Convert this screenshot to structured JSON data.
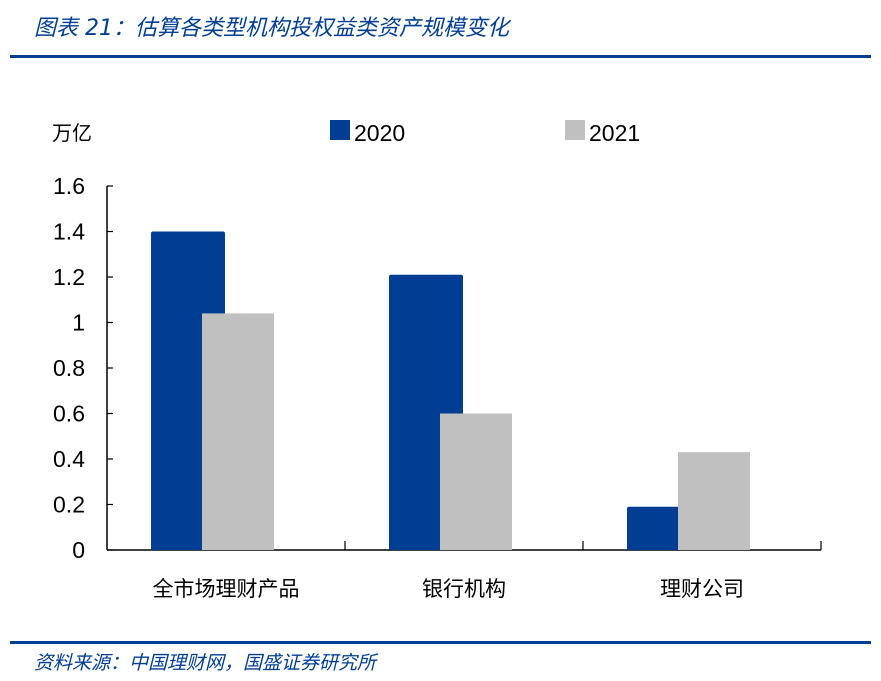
{
  "header": {
    "title": "图表 21：估算各类型机构投权益类资产规模变化"
  },
  "footer": {
    "source": "资料来源：中国理财网，国盛证券研究所"
  },
  "chart_data": {
    "type": "bar",
    "title": "",
    "ylabel": "万亿",
    "xlabel": "",
    "categories": [
      "全市场理财产品",
      "银行机构",
      "理财公司"
    ],
    "series": [
      {
        "name": "2020",
        "values": [
          1.4,
          1.21,
          0.19
        ],
        "color": "#003e94"
      },
      {
        "name": "2021",
        "values": [
          1.04,
          0.6,
          0.43
        ],
        "color": "#c0c0c0"
      }
    ],
    "ylim": [
      0,
      1.6
    ],
    "yticks": [
      "0",
      "0.2",
      "0.4",
      "0.6",
      "0.8",
      "1",
      "1.2",
      "1.4",
      "1.6"
    ],
    "grid": false,
    "legend": "top"
  }
}
